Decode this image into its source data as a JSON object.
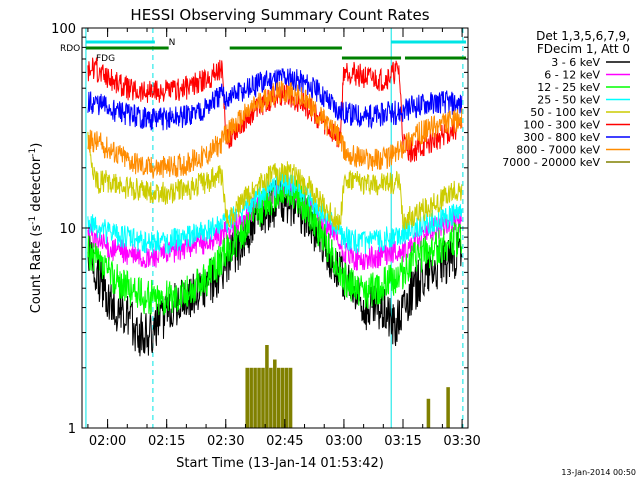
{
  "chart_data": {
    "type": "line",
    "title": "HESSI Observing Summary Count Rates",
    "xlabel": "Start Time (13-Jan-14 01:53:42)",
    "ylabel": "Count Rate (s",
    "ylabel_sup": "-1",
    "ylabel_tail": " detector",
    "ylabel_sup2": "-1",
    "ylabel_close": ")",
    "yscale": "log",
    "ylim": [
      1,
      100
    ],
    "y_ticks": [
      {
        "value": 1,
        "label": "1"
      },
      {
        "value": 10,
        "label": "10"
      },
      {
        "value": 100,
        "label": "100"
      }
    ],
    "xlim": [
      113.5,
      211.5
    ],
    "x_ticks": [
      {
        "value": 120,
        "label": "02:00"
      },
      {
        "value": 135,
        "label": "02:15"
      },
      {
        "value": 150,
        "label": "02:30"
      },
      {
        "value": 165,
        "label": "02:45"
      },
      {
        "value": 180,
        "label": "03:00"
      },
      {
        "value": 195,
        "label": "03:15"
      },
      {
        "value": 210,
        "label": "03:30"
      }
    ],
    "legend_header": [
      "Det 1,3,5,6,7,9,",
      "FDecim 1, Att 0"
    ],
    "legend_position": "right",
    "flag_bars": [
      {
        "name": "RDO",
        "label": "RDO",
        "color": "#00e5e5",
        "intervals": [
          [
            114.5,
            132.0
          ],
          [
            192.0,
            211.0
          ]
        ],
        "row": 0
      },
      {
        "name": "N",
        "label": "N",
        "color": "#00e5e5",
        "intervals": [],
        "row": 0,
        "label_at": 135.5
      },
      {
        "name": "FDG",
        "label": "FDG",
        "color": "#008000",
        "intervals": [
          [
            114.5,
            135.5
          ],
          [
            151.0,
            179.5
          ]
        ],
        "row": 1
      },
      {
        "name": "FDG2",
        "label": "",
        "color": "#008000",
        "intervals": [
          [
            179.5,
            194.5
          ],
          [
            195.5,
            211.0
          ]
        ],
        "row": 2
      }
    ],
    "night_lines": [
      {
        "x": 114.5,
        "style": "solid"
      },
      {
        "x": 131.5,
        "style": "dashed"
      },
      {
        "x": 192.0,
        "style": "solid"
      },
      {
        "x": 210.2,
        "style": "dashed"
      }
    ],
    "series": [
      {
        "name": "3 - 6 keV",
        "color": "#000000",
        "x": [
          115,
          120,
          125,
          128,
          131,
          133,
          135,
          140,
          145,
          150,
          154,
          158,
          162,
          165,
          168,
          171,
          174,
          177,
          180,
          183,
          186,
          189,
          191,
          193,
          195,
          198,
          201,
          204,
          207,
          210
        ],
        "y": [
          7.5,
          4.5,
          3.5,
          3.0,
          3.0,
          3.2,
          4.0,
          4.5,
          5.0,
          6.5,
          8.5,
          11,
          13,
          14,
          13,
          11,
          9,
          7,
          5.5,
          4.5,
          4.0,
          4.0,
          3.8,
          3.2,
          4.0,
          5.0,
          6.0,
          6.5,
          7.0,
          7.5
        ]
      },
      {
        "name": "6 - 12 keV",
        "color": "#ff00ff",
        "x": [
          115,
          120,
          125,
          130,
          135,
          140,
          145,
          150,
          154,
          158,
          162,
          165,
          168,
          171,
          174,
          177,
          180,
          183,
          186,
          189,
          192,
          195,
          198,
          201,
          204,
          207,
          210
        ],
        "y": [
          9.5,
          8.0,
          7.5,
          7.0,
          7.5,
          8.0,
          8.5,
          9.5,
          11,
          13,
          15,
          16,
          15,
          13,
          11,
          9.5,
          7.5,
          7.0,
          7.0,
          7.2,
          7.5,
          7.5,
          8.5,
          9.5,
          10,
          10.5,
          11
        ]
      },
      {
        "name": "12 - 25 keV",
        "color": "#00ff00",
        "x": [
          115,
          120,
          125,
          130,
          135,
          140,
          145,
          150,
          154,
          158,
          162,
          165,
          168,
          171,
          174,
          177,
          180,
          183,
          186,
          189,
          192,
          195,
          198,
          201,
          204,
          207,
          210
        ],
        "y": [
          7.5,
          6.0,
          5.0,
          4.5,
          4.5,
          4.8,
          5.5,
          7.5,
          9.5,
          12,
          14.5,
          15.5,
          14.5,
          12,
          9.5,
          7.5,
          5.5,
          5.0,
          4.8,
          5.0,
          5.5,
          6.0,
          7.0,
          7.5,
          8.0,
          8.5,
          9.0
        ]
      },
      {
        "name": "25 - 50 keV",
        "color": "#00ffff",
        "x": [
          115,
          120,
          125,
          130,
          135,
          140,
          145,
          150,
          154,
          158,
          162,
          165,
          168,
          171,
          174,
          177,
          180,
          183,
          186,
          189,
          192,
          195,
          198,
          201,
          204,
          207,
          210
        ],
        "y": [
          10.5,
          9.5,
          9.0,
          8.5,
          8.5,
          9.0,
          9.5,
          10.5,
          12,
          14,
          16,
          17,
          16,
          14,
          12,
          10.5,
          9.0,
          8.5,
          8.5,
          8.7,
          9.0,
          9.5,
          10,
          10.5,
          11,
          11.5,
          12
        ]
      },
      {
        "name": "50 - 100 keV",
        "color": "#cccc00",
        "x": [
          115,
          117,
          120,
          125,
          130,
          135,
          140,
          145,
          149,
          150,
          152,
          155,
          158,
          162,
          165,
          168,
          171,
          174,
          177,
          179,
          180,
          182,
          186,
          190,
          194,
          195,
          197,
          201,
          205,
          208,
          210
        ],
        "y": [
          27,
          17,
          17,
          16,
          15,
          15,
          15.5,
          17,
          18.5,
          11,
          12,
          14,
          16.5,
          18.5,
          19,
          18,
          16,
          13.5,
          11.5,
          10.5,
          17,
          17,
          16.5,
          16.5,
          17,
          11,
          11.5,
          12.5,
          14,
          15,
          15.5
        ]
      },
      {
        "name": "100 - 300 keV",
        "color": "#ff0000",
        "x": [
          115,
          117,
          120,
          125,
          130,
          135,
          140,
          145,
          149,
          150,
          152,
          155,
          158,
          162,
          165,
          168,
          171,
          174,
          177,
          179,
          180,
          182,
          186,
          190,
          194,
          195,
          197,
          201,
          205,
          208,
          210
        ],
        "y": [
          62,
          62,
          57,
          50,
          48,
          48,
          50,
          55,
          64,
          27,
          30,
          35,
          40,
          45,
          46,
          44,
          40,
          35,
          30,
          28,
          62,
          60,
          56,
          55,
          62,
          27,
          24,
          26,
          29,
          31,
          32
        ]
      },
      {
        "name": "300 - 800 keV",
        "color": "#0000ff",
        "x": [
          115,
          117,
          120,
          125,
          130,
          135,
          140,
          145,
          149,
          150,
          152,
          155,
          158,
          162,
          165,
          168,
          171,
          174,
          177,
          179,
          180,
          182,
          186,
          190,
          194,
          195,
          197,
          201,
          205,
          208,
          210
        ],
        "y": [
          42,
          42,
          40,
          37,
          35,
          35,
          36,
          40,
          46,
          44,
          46,
          49,
          52,
          56,
          57,
          55,
          52,
          47,
          42,
          38,
          38,
          37,
          36,
          37,
          38,
          38,
          40,
          42,
          43,
          42,
          41
        ]
      },
      {
        "name": "800 - 7000 keV",
        "color": "#ff8c00",
        "x": [
          115,
          117,
          120,
          125,
          130,
          135,
          140,
          145,
          149,
          150,
          152,
          155,
          158,
          162,
          165,
          168,
          171,
          174,
          177,
          179,
          180,
          182,
          186,
          190,
          194,
          195,
          197,
          201,
          205,
          208,
          210
        ],
        "y": [
          27,
          27,
          25,
          22,
          20,
          20,
          21,
          23,
          27,
          29,
          32,
          37,
          42,
          47,
          48,
          46,
          42,
          36,
          31,
          28,
          24,
          23,
          22,
          22,
          24,
          26,
          28,
          31,
          33,
          34,
          35
        ]
      },
      {
        "name": "7000 - 20000 keV",
        "color": "#808000",
        "bars": true,
        "x": [
          155,
          156,
          157,
          158,
          159,
          160,
          161,
          162,
          163,
          164,
          165,
          166,
          201,
          206
        ],
        "y": [
          2.0,
          2.0,
          2.0,
          2.0,
          2.0,
          2.6,
          2.0,
          2.2,
          2.0,
          2.0,
          2.0,
          2.0,
          1.4,
          1.6
        ]
      }
    ]
  },
  "timestamp": "13-Jan-2014 00:50"
}
